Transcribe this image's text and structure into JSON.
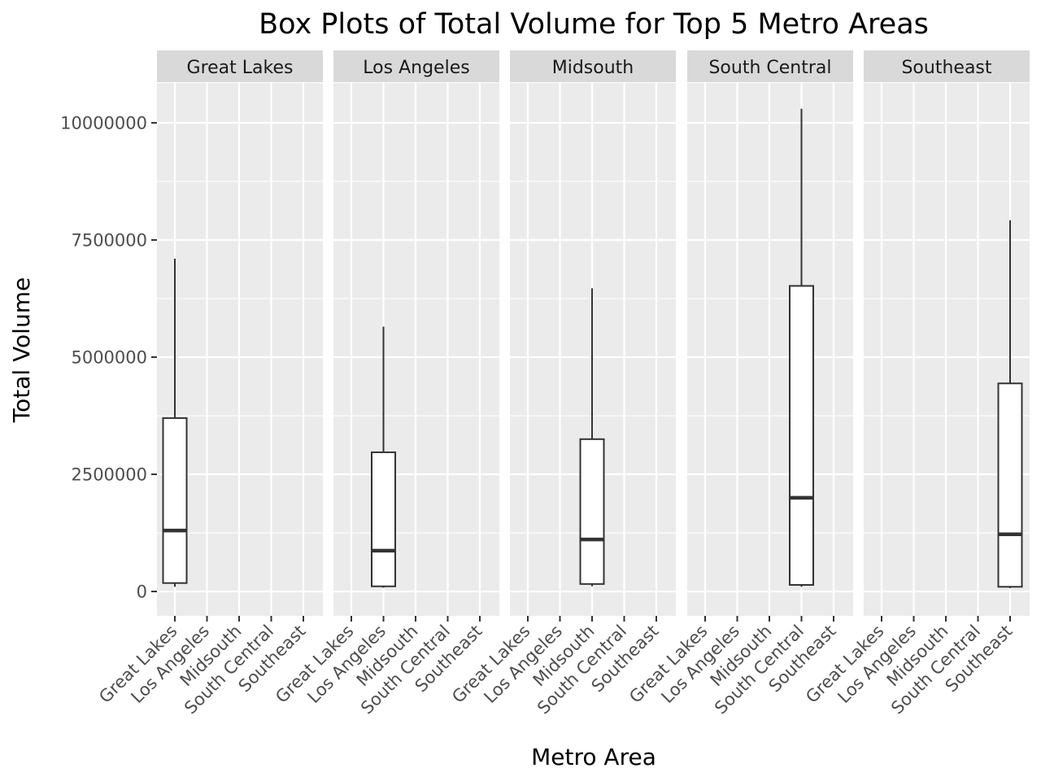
{
  "chart_data": {
    "type": "boxplot",
    "title": "Box Plots of Total Volume for Top 5 Metro Areas",
    "xlabel": "Metro Area",
    "ylabel": "Total Volume",
    "categories": [
      "Great Lakes",
      "Los Angeles",
      "Midsouth",
      "South Central",
      "Southeast"
    ],
    "facets": [
      "Great Lakes",
      "Los Angeles",
      "Midsouth",
      "South Central",
      "Southeast"
    ],
    "y_ticks": [
      0,
      2500000,
      5000000,
      7500000,
      10000000
    ],
    "y_tick_labels": [
      "0",
      "2500000",
      "5000000",
      "7500000",
      "10000000"
    ],
    "ylim": [
      -520000,
      10850000
    ],
    "boxes": [
      {
        "facet": "Great Lakes",
        "category": "Great Lakes",
        "min": 100000,
        "q1": 180000,
        "median": 1300000,
        "q3": 3700000,
        "max": 7100000
      },
      {
        "facet": "Los Angeles",
        "category": "Los Angeles",
        "min": 80000,
        "q1": 110000,
        "median": 870000,
        "q3": 2970000,
        "max": 5650000
      },
      {
        "facet": "Midsouth",
        "category": "Midsouth",
        "min": 110000,
        "q1": 160000,
        "median": 1110000,
        "q3": 3250000,
        "max": 6470000
      },
      {
        "facet": "South Central",
        "category": "South Central",
        "min": 100000,
        "q1": 140000,
        "median": 2000000,
        "q3": 6520000,
        "max": 10300000
      },
      {
        "facet": "Southeast",
        "category": "Southeast",
        "min": 70000,
        "q1": 100000,
        "median": 1220000,
        "q3": 4440000,
        "max": 7920000
      }
    ],
    "grid": true,
    "legend": "none"
  },
  "colors": {
    "panel_background": "#ebebeb",
    "strip_background": "#d9d9d9",
    "grid_major": "#ffffff",
    "box_fill": "#ffffff",
    "box_line": "#333333",
    "tick": "#333333"
  }
}
